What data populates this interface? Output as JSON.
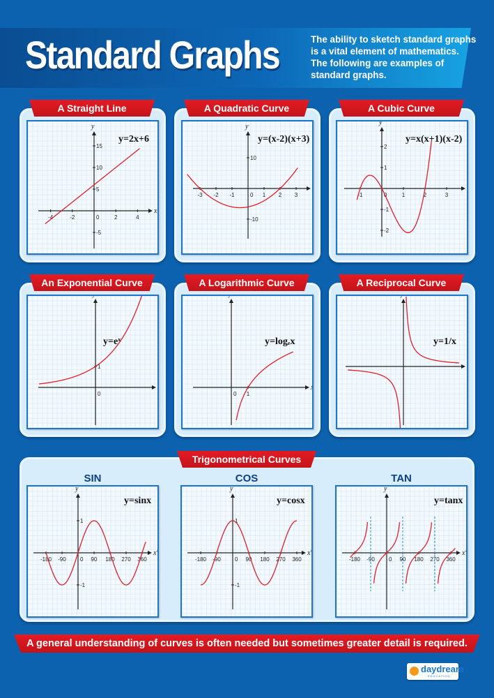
{
  "header": {
    "title": "Standard Graphs",
    "description": "The ability to sketch standard graphs is a vital element of mathematics. The following are examples of standard graphs."
  },
  "graphs": [
    {
      "title": "A Straight Line",
      "equation": "y=2x+6",
      "x_label": "x",
      "y_label": "y",
      "xticks": [
        "-4",
        "-2",
        "2",
        "4"
      ],
      "yticks": [
        "15",
        "10",
        "5",
        "-5"
      ],
      "origin": "0"
    },
    {
      "title": "A Quadratic Curve",
      "equation": "y=(x-2)(x+3)",
      "x_label": "x",
      "y_label": "y",
      "xticks": [
        "-3",
        "-2",
        "-1",
        "1",
        "2",
        "3"
      ],
      "yticks": [
        "10",
        "-10"
      ],
      "origin": "0"
    },
    {
      "title": "A Cubic Curve",
      "equation": "y=x(x+1)(x-2)",
      "x_label": "x",
      "y_label": "y",
      "xticks": [
        "-1",
        "1",
        "2",
        "3"
      ],
      "yticks": [
        "2",
        "1",
        "-1",
        "-2"
      ],
      "origin": "0"
    },
    {
      "title": "An Exponential Curve",
      "equation": "y=eˣ",
      "x_label": "x",
      "y_label": "y",
      "xticks": [],
      "yticks": [
        "1"
      ],
      "origin": "0"
    },
    {
      "title": "A Logarithmic Curve",
      "equation": "y=logₑx",
      "x_label": "x",
      "y_label": "y",
      "xticks": [
        "1"
      ],
      "yticks": [],
      "origin": "0"
    },
    {
      "title": "A Reciprocal Curve",
      "equation": "y=1/x",
      "x_label": "x",
      "y_label": "y",
      "xticks": [],
      "yticks": [],
      "origin": ""
    }
  ],
  "trig": {
    "title": "Trigonometrical Curves",
    "graphs": [
      {
        "name": "SIN",
        "equation": "y=sinx",
        "x_label": "x°",
        "y_label": "y",
        "xticks": [
          "-180",
          "-90",
          "90",
          "180",
          "270",
          "360"
        ],
        "yticks": [
          "1",
          "-1"
        ],
        "origin": "0"
      },
      {
        "name": "COS",
        "equation": "y=cosx",
        "x_label": "x°",
        "y_label": "y",
        "xticks": [
          "-180",
          "-90",
          "90",
          "180",
          "270",
          "360"
        ],
        "yticks": [
          "1",
          "-1"
        ],
        "origin": "0"
      },
      {
        "name": "TAN",
        "equation": "y=tanx",
        "x_label": "x°",
        "y_label": "y",
        "xticks": [
          "-180",
          "-90",
          "90",
          "180",
          "270",
          "360"
        ],
        "yticks": [],
        "origin": "0"
      }
    ]
  },
  "footer": {
    "banner": "A general understanding of curves is often needed but sometimes greater detail is required.",
    "brand": "daydream",
    "brand_sub": "EDUCATION"
  },
  "colors": {
    "background": "#0d62b0",
    "ribbon": "#d9141e",
    "curve": "#e0202a",
    "card": "#d8edfb",
    "asymptote": "#1a8fe0"
  }
}
